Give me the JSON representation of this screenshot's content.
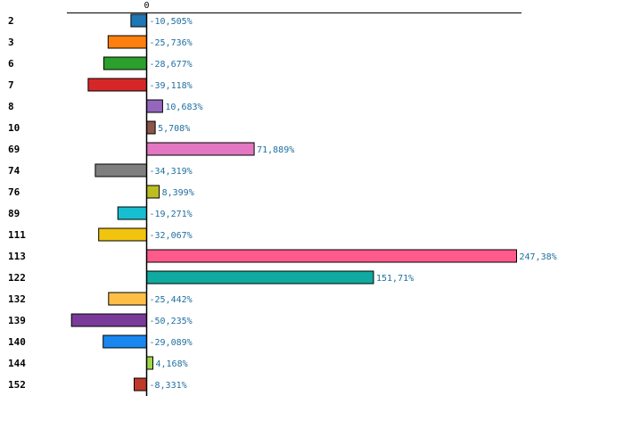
{
  "chart_data": {
    "type": "bar",
    "orientation": "horizontal",
    "title": "",
    "xlabel": "",
    "ylabel": "",
    "zero_tick_label": "0",
    "xlim": [
      -60,
      260
    ],
    "grid": false,
    "categories": [
      "2",
      "3",
      "6",
      "7",
      "8",
      "10",
      "69",
      "74",
      "76",
      "89",
      "111",
      "113",
      "122",
      "132",
      "139",
      "140",
      "144",
      "152"
    ],
    "values": [
      -10.505,
      -25.736,
      -28.677,
      -39.118,
      10.683,
      5.708,
      71.889,
      -34.319,
      8.399,
      -19.271,
      -32.067,
      247.38,
      151.71,
      -25.442,
      -50.235,
      -29.089,
      4.168,
      -8.331
    ],
    "value_labels": [
      "-10,505%",
      "-25,736%",
      "-28,677%",
      "-39,118%",
      "10,683%",
      "5,708%",
      "71,889%",
      "-34,319%",
      "8,399%",
      "-19,271%",
      "-32,067%",
      "247,38%",
      "151,71%",
      "-25,442%",
      "-50,235%",
      "-29,089%",
      "4,168%",
      "-8,331%"
    ],
    "colors": [
      "#1f77b4",
      "#ff7f0e",
      "#2ca02c",
      "#d62728",
      "#9467bd",
      "#8c564b",
      "#e377c2",
      "#7f7f7f",
      "#bcbd22",
      "#17becf",
      "#f1c40f",
      "#ff5a8c",
      "#10aaa0",
      "#ffbf47",
      "#7a3a9a",
      "#1a87f0",
      "#9ed84a",
      "#c0392b"
    ]
  }
}
